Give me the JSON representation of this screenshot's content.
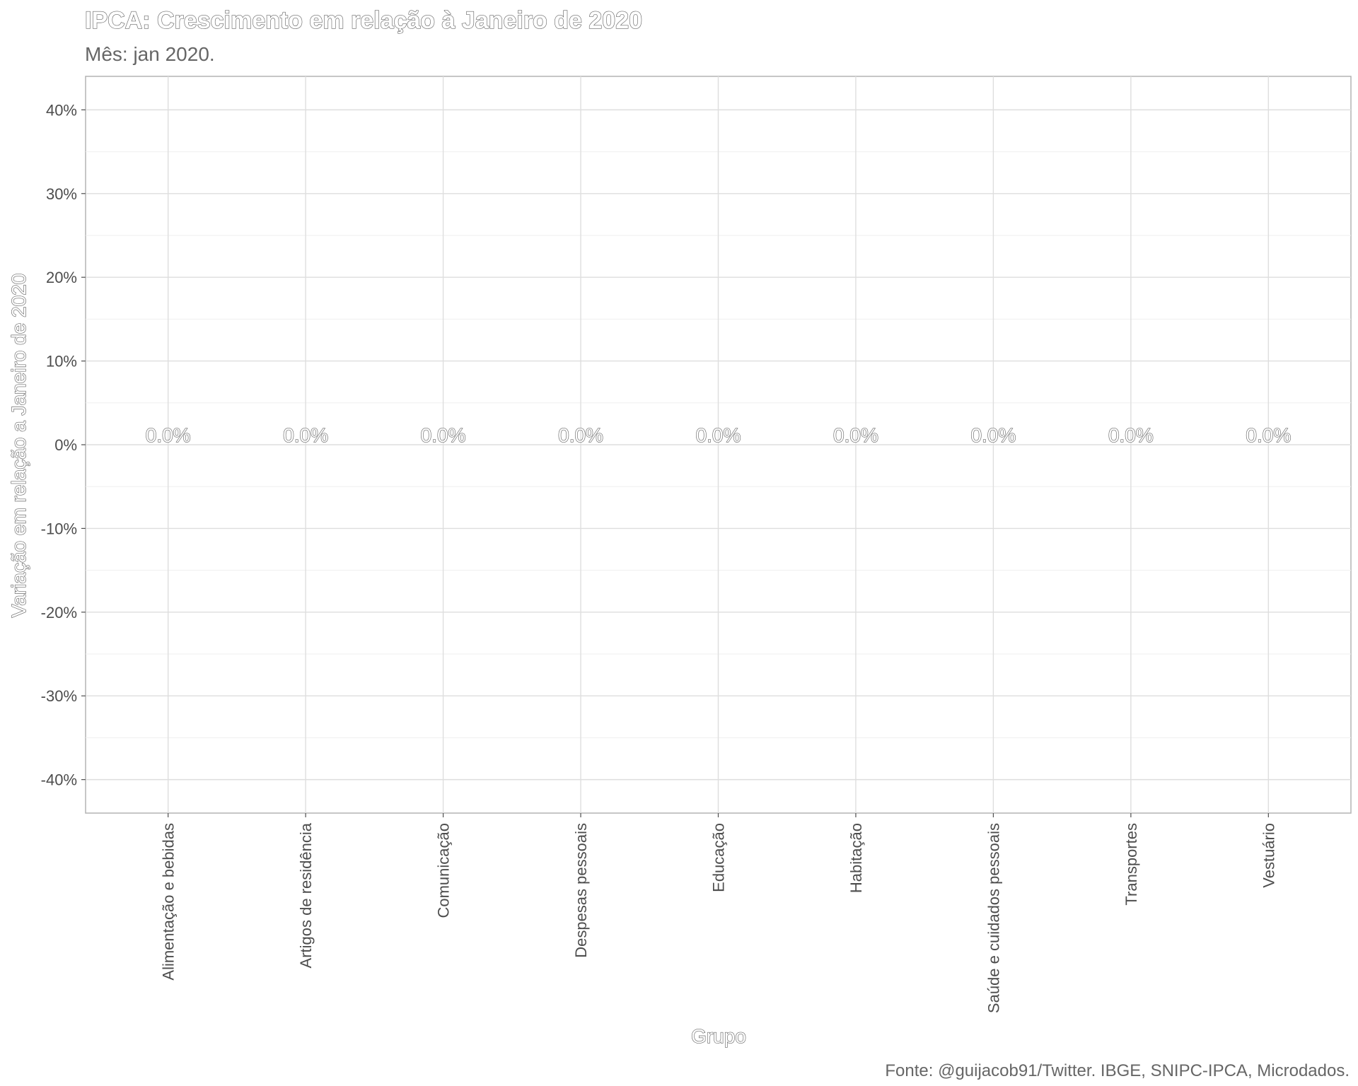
{
  "chart_data": {
    "type": "bar",
    "title": "IPCA: Crescimento em relação à Janeiro de 2020",
    "subtitle": "Mês: jan 2020.",
    "xlabel": "Grupo",
    "ylabel": "Variação em relação a Janeiro de 2020",
    "caption": "Fonte: @guijacob91/Twitter. IBGE, SNIPC-IPCA, Microdados.",
    "categories": [
      "Alimentação e bebidas",
      "Artigos de residência",
      "Comunicação",
      "Despesas pessoais",
      "Educação",
      "Habitação",
      "Saúde e cuidados pessoais",
      "Transportes",
      "Vestuário"
    ],
    "values": [
      0,
      0,
      0,
      0,
      0,
      0,
      0,
      0,
      0
    ],
    "value_labels": [
      "0.0%",
      "0.0%",
      "0.0%",
      "0.0%",
      "0.0%",
      "0.0%",
      "0.0%",
      "0.0%",
      "0.0%"
    ],
    "ylim": [
      -44,
      44
    ],
    "yticks": [
      40,
      30,
      20,
      10,
      0,
      -10,
      -20,
      -30,
      -40
    ],
    "ytick_labels": [
      "40%",
      "30%",
      "20%",
      "10%",
      "0%",
      "-10%",
      "-20%",
      "-30%",
      "-40%"
    ],
    "grid": true,
    "colors": {
      "panel_border": "#b3b3b3",
      "grid_major": "#dedede",
      "grid_minor": "#efefef",
      "text": "#4d4d4d",
      "title_stroke": "#666666"
    }
  }
}
